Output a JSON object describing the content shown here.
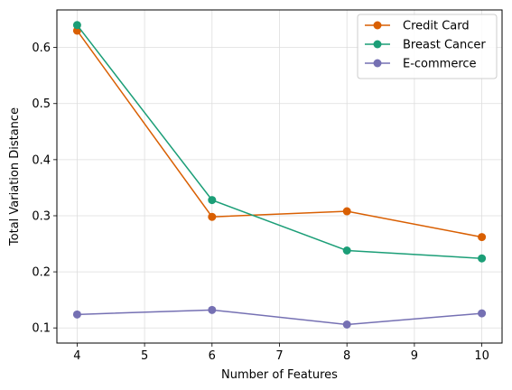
{
  "chart_data": {
    "type": "line",
    "xlabel": "Number of Features",
    "ylabel": "Total Variation Distance",
    "x": [
      4,
      6,
      8,
      10
    ],
    "xlim": [
      3.7,
      10.3
    ],
    "ylim": [
      0.073,
      0.667
    ],
    "xticks": [
      4,
      5,
      6,
      7,
      8,
      9,
      10
    ],
    "yticks": [
      0.1,
      0.2,
      0.3,
      0.4,
      0.5,
      0.6
    ],
    "xtick_labels": [
      "4",
      "5",
      "6",
      "7",
      "8",
      "9",
      "10"
    ],
    "ytick_labels": [
      "0.1",
      "0.2",
      "0.3",
      "0.4",
      "0.5",
      "0.6"
    ],
    "grid": true,
    "legend_position": "top-right",
    "series": [
      {
        "name": "Credit Card",
        "color": "#d95f02",
        "marker": "circle",
        "values": [
          0.63,
          0.298,
          0.308,
          0.262
        ]
      },
      {
        "name": "Breast Cancer",
        "color": "#1b9e77",
        "marker": "circle",
        "values": [
          0.64,
          0.328,
          0.238,
          0.224
        ]
      },
      {
        "name": "E-commerce",
        "color": "#7570b3",
        "marker": "circle",
        "values": [
          0.124,
          0.132,
          0.106,
          0.126
        ]
      }
    ]
  }
}
